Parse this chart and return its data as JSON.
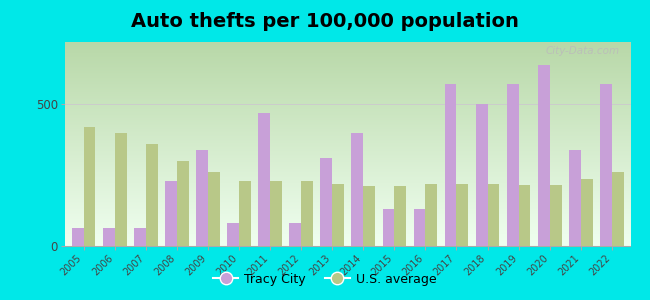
{
  "title": "Auto thefts per 100,000 population",
  "years": [
    2005,
    2006,
    2007,
    2008,
    2009,
    2010,
    2011,
    2012,
    2013,
    2014,
    2015,
    2016,
    2017,
    2018,
    2019,
    2020,
    2021,
    2022
  ],
  "tracy_city": [
    65,
    65,
    65,
    230,
    340,
    80,
    470,
    80,
    310,
    400,
    130,
    130,
    570,
    500,
    570,
    640,
    340,
    570
  ],
  "us_average": [
    420,
    400,
    360,
    300,
    260,
    230,
    230,
    230,
    220,
    210,
    210,
    220,
    220,
    220,
    215,
    215,
    235,
    260
  ],
  "ylim": [
    0,
    720
  ],
  "yticks": [
    0,
    500
  ],
  "bar_width": 0.38,
  "tracy_color": "#c8a0d8",
  "us_color": "#b8c888",
  "bg_top": "#b8d8a8",
  "bg_bottom": "#f0fff0",
  "outer_bg": "#00e8e8",
  "grid_color": "#cccccc",
  "title_fontsize": 14,
  "legend_tracy": "Tracy City",
  "legend_us": "U.S. average",
  "watermark": "City-Data.com"
}
